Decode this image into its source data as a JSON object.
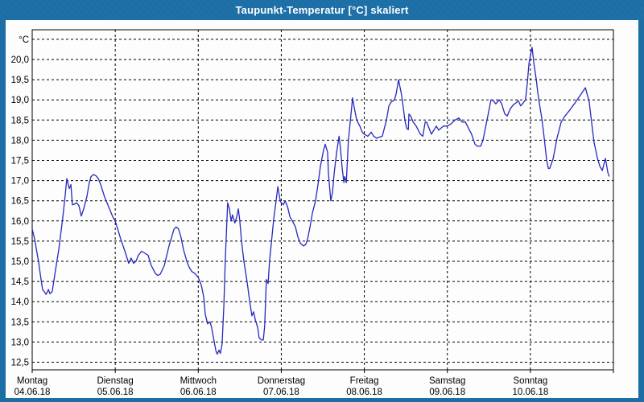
{
  "window": {
    "title": "Taupunkt-Temperatur [°C] skaliert",
    "frame_color": "#1c6ea4",
    "title_text_color": "#ffffff",
    "content_background": "#fcfdfc"
  },
  "chart_data": {
    "type": "line",
    "title": "Taupunkt-Temperatur [°C] skaliert",
    "ylabel": "°C",
    "grid": "dashed",
    "legend": "none",
    "axis_color": "#000000",
    "y_axis": {
      "unit_label": "°C",
      "tick_values": [
        20.5,
        20.0,
        19.5,
        19.0,
        18.5,
        18.0,
        17.5,
        17.0,
        16.5,
        16.0,
        15.5,
        15.0,
        14.5,
        14.0,
        13.5,
        13.0,
        12.5
      ],
      "tick_labels": [
        "°C",
        "20,0",
        "19,5",
        "19,0",
        "18,5",
        "18,0",
        "17,5",
        "17,0",
        "16,5",
        "16,0",
        "15,5",
        "15,0",
        "14,5",
        "14,0",
        "13,5",
        "13,0",
        "12,5"
      ],
      "ylim": [
        12.3,
        20.75
      ]
    },
    "x_axis": {
      "unit": "hours since 04.06.18 00:00",
      "xlim_hours": [
        0,
        168
      ],
      "day_width_hours": 24,
      "days": [
        {
          "name": "Montag",
          "date": "04.06.18"
        },
        {
          "name": "Dienstag",
          "date": "05.06.18"
        },
        {
          "name": "Mittwoch",
          "date": "06.06.18"
        },
        {
          "name": "Donnerstag",
          "date": "07.06.18"
        },
        {
          "name": "Freitag",
          "date": "08.06.18"
        },
        {
          "name": "Samstag",
          "date": "09.06.18"
        },
        {
          "name": "Sonntag",
          "date": "10.06.18"
        }
      ]
    },
    "series": [
      {
        "name": "Taupunkt-Temperatur",
        "color": "#2828be",
        "points_hours_value": [
          [
            0,
            15.8
          ],
          [
            0.7,
            15.55
          ],
          [
            1.2,
            15.3
          ],
          [
            1.9,
            14.95
          ],
          [
            2.3,
            14.7
          ],
          [
            3,
            14.3
          ],
          [
            3.5,
            14.25
          ],
          [
            4,
            14.18
          ],
          [
            4.7,
            14.3
          ],
          [
            5.1,
            14.2
          ],
          [
            5.8,
            14.25
          ],
          [
            6.5,
            14.65
          ],
          [
            7.7,
            15.3
          ],
          [
            8.8,
            16.05
          ],
          [
            9.5,
            16.6
          ],
          [
            10,
            17.05
          ],
          [
            10.7,
            16.8
          ],
          [
            11.2,
            16.9
          ],
          [
            11.6,
            16.4
          ],
          [
            12.3,
            16.42
          ],
          [
            12.8,
            16.45
          ],
          [
            13.5,
            16.38
          ],
          [
            14.2,
            16.12
          ],
          [
            14.9,
            16.3
          ],
          [
            15.8,
            16.6
          ],
          [
            16.5,
            16.95
          ],
          [
            17,
            17.1
          ],
          [
            17.7,
            17.15
          ],
          [
            18.4,
            17.12
          ],
          [
            19.1,
            17.05
          ],
          [
            19.8,
            16.9
          ],
          [
            20.9,
            16.6
          ],
          [
            22.1,
            16.35
          ],
          [
            23.3,
            16.1
          ],
          [
            24,
            16
          ],
          [
            24.9,
            15.75
          ],
          [
            25.6,
            15.55
          ],
          [
            26.8,
            15.25
          ],
          [
            27.9,
            14.95
          ],
          [
            28.6,
            15.08
          ],
          [
            29.3,
            14.95
          ],
          [
            30,
            15
          ],
          [
            30.7,
            15.15
          ],
          [
            31.6,
            15.25
          ],
          [
            32.6,
            15.2
          ],
          [
            33.5,
            15.15
          ],
          [
            34.4,
            14.9
          ],
          [
            35.6,
            14.7
          ],
          [
            36.3,
            14.65
          ],
          [
            37,
            14.68
          ],
          [
            38.2,
            14.9
          ],
          [
            38.9,
            15.15
          ],
          [
            39.6,
            15.4
          ],
          [
            40.3,
            15.6
          ],
          [
            41,
            15.8
          ],
          [
            41.6,
            15.85
          ],
          [
            42.3,
            15.8
          ],
          [
            43,
            15.6
          ],
          [
            43.7,
            15.3
          ],
          [
            44.7,
            15
          ],
          [
            45.4,
            14.85
          ],
          [
            46.1,
            14.75
          ],
          [
            47,
            14.7
          ],
          [
            48,
            14.6
          ],
          [
            48.9,
            14.4
          ],
          [
            49.6,
            14.1
          ],
          [
            50,
            13.7
          ],
          [
            50.7,
            13.45
          ],
          [
            51.4,
            13.5
          ],
          [
            51.9,
            13.35
          ],
          [
            52.4,
            13.1
          ],
          [
            53.1,
            12.78
          ],
          [
            53.5,
            12.7
          ],
          [
            54,
            12.8
          ],
          [
            54.4,
            12.72
          ],
          [
            54.9,
            12.95
          ],
          [
            55.4,
            13.9
          ],
          [
            55.8,
            15
          ],
          [
            56.5,
            16.45
          ],
          [
            57,
            16.3
          ],
          [
            57.5,
            16
          ],
          [
            57.9,
            16.15
          ],
          [
            58.6,
            15.95
          ],
          [
            59.1,
            16.1
          ],
          [
            59.6,
            16.3
          ],
          [
            60,
            16
          ],
          [
            60.5,
            15.5
          ],
          [
            61.2,
            15
          ],
          [
            62.1,
            14.5
          ],
          [
            62.8,
            14.05
          ],
          [
            63.5,
            13.65
          ],
          [
            64,
            13.75
          ],
          [
            64.5,
            13.55
          ],
          [
            65.2,
            13.35
          ],
          [
            65.6,
            13.1
          ],
          [
            66.3,
            13.05
          ],
          [
            66.8,
            13.05
          ],
          [
            67.2,
            13.4
          ],
          [
            67.7,
            14.55
          ],
          [
            68.2,
            14.45
          ],
          [
            68.6,
            15
          ],
          [
            69.3,
            15.6
          ],
          [
            69.8,
            16.05
          ],
          [
            70.5,
            16.5
          ],
          [
            71,
            16.85
          ],
          [
            71.7,
            16.5
          ],
          [
            72,
            16.45
          ],
          [
            72.6,
            16.4
          ],
          [
            73.1,
            16.5
          ],
          [
            73.8,
            16.35
          ],
          [
            74.5,
            16.1
          ],
          [
            75.2,
            16
          ],
          [
            76.1,
            15.85
          ],
          [
            76.8,
            15.6
          ],
          [
            77.5,
            15.45
          ],
          [
            78.4,
            15.38
          ],
          [
            79.1,
            15.42
          ],
          [
            79.6,
            15.55
          ],
          [
            80.3,
            15.85
          ],
          [
            81,
            16.2
          ],
          [
            81.9,
            16.5
          ],
          [
            82.6,
            16.9
          ],
          [
            83.3,
            17.35
          ],
          [
            84.2,
            17.75
          ],
          [
            84.7,
            17.9
          ],
          [
            85.4,
            17.7
          ],
          [
            85.6,
            17.2
          ],
          [
            86.3,
            16.5
          ],
          [
            86.8,
            16.7
          ],
          [
            87.3,
            17.2
          ],
          [
            88,
            17.7
          ],
          [
            88.7,
            18.1
          ],
          [
            89.1,
            17.8
          ],
          [
            89.6,
            17.3
          ],
          [
            90.1,
            16.95
          ],
          [
            90.3,
            17.1
          ],
          [
            90.8,
            16.95
          ],
          [
            91.4,
            18
          ],
          [
            92.1,
            18.6
          ],
          [
            92.6,
            19.05
          ],
          [
            93.1,
            18.8
          ],
          [
            93.8,
            18.5
          ],
          [
            94.7,
            18.35
          ],
          [
            95.4,
            18.2
          ],
          [
            96,
            18.15
          ],
          [
            97,
            18.1
          ],
          [
            98,
            18.2
          ],
          [
            98.7,
            18.1
          ],
          [
            99.6,
            18.05
          ],
          [
            100.5,
            18.08
          ],
          [
            101.2,
            18.1
          ],
          [
            102.4,
            18.5
          ],
          [
            103.1,
            18.85
          ],
          [
            103.8,
            18.95
          ],
          [
            104.7,
            19
          ],
          [
            105.2,
            19.15
          ],
          [
            105.9,
            19.5
          ],
          [
            106.6,
            19.2
          ],
          [
            107,
            19
          ],
          [
            107.7,
            18.5
          ],
          [
            108.2,
            18.3
          ],
          [
            108.7,
            18.26
          ],
          [
            108.9,
            18.65
          ],
          [
            109.4,
            18.6
          ],
          [
            110.1,
            18.45
          ],
          [
            111,
            18.35
          ],
          [
            112.2,
            18.15
          ],
          [
            112.9,
            18.1
          ],
          [
            113.6,
            18.45
          ],
          [
            114,
            18.45
          ],
          [
            114.7,
            18.3
          ],
          [
            115.4,
            18.15
          ],
          [
            116.1,
            18.25
          ],
          [
            116.8,
            18.35
          ],
          [
            117.5,
            18.25
          ],
          [
            118.2,
            18.3
          ],
          [
            118.9,
            18.35
          ],
          [
            120,
            18.35
          ],
          [
            121,
            18.4
          ],
          [
            122.2,
            18.5
          ],
          [
            123.3,
            18.55
          ],
          [
            124.3,
            18.45
          ],
          [
            125.2,
            18.45
          ],
          [
            126.1,
            18.3
          ],
          [
            127,
            18.15
          ],
          [
            128,
            17.9
          ],
          [
            128.7,
            17.85
          ],
          [
            129.6,
            17.85
          ],
          [
            130.3,
            18
          ],
          [
            131,
            18.3
          ],
          [
            131.7,
            18.6
          ],
          [
            132.6,
            19
          ],
          [
            133.3,
            18.98
          ],
          [
            134,
            18.9
          ],
          [
            135,
            19
          ],
          [
            135.7,
            18.9
          ],
          [
            136.6,
            18.65
          ],
          [
            137.3,
            18.6
          ],
          [
            138.2,
            18.78
          ],
          [
            139.1,
            18.88
          ],
          [
            139.8,
            18.92
          ],
          [
            140.5,
            18.98
          ],
          [
            141.2,
            18.85
          ],
          [
            141.9,
            18.92
          ],
          [
            142.6,
            19
          ],
          [
            143.1,
            19.4
          ],
          [
            143.6,
            19.9
          ],
          [
            144,
            20.1
          ],
          [
            144.5,
            20.3
          ],
          [
            145,
            19.9
          ],
          [
            145.7,
            19.5
          ],
          [
            146.1,
            19.2
          ],
          [
            146.8,
            18.8
          ],
          [
            147.3,
            18.55
          ],
          [
            147.8,
            18.2
          ],
          [
            148.2,
            17.9
          ],
          [
            148.7,
            17.5
          ],
          [
            149.2,
            17.3
          ],
          [
            149.6,
            17.3
          ],
          [
            150.6,
            17.55
          ],
          [
            151.7,
            18.05
          ],
          [
            152.9,
            18.45
          ],
          [
            154,
            18.6
          ],
          [
            155.4,
            18.75
          ],
          [
            157.1,
            18.95
          ],
          [
            158.7,
            19.15
          ],
          [
            159.9,
            19.3
          ],
          [
            161,
            18.95
          ],
          [
            161.7,
            18.45
          ],
          [
            162.4,
            17.95
          ],
          [
            163.4,
            17.55
          ],
          [
            164.1,
            17.35
          ],
          [
            164.8,
            17.25
          ],
          [
            165.7,
            17.55
          ],
          [
            166.4,
            17.2
          ],
          [
            166.8,
            17.1
          ]
        ]
      }
    ]
  }
}
